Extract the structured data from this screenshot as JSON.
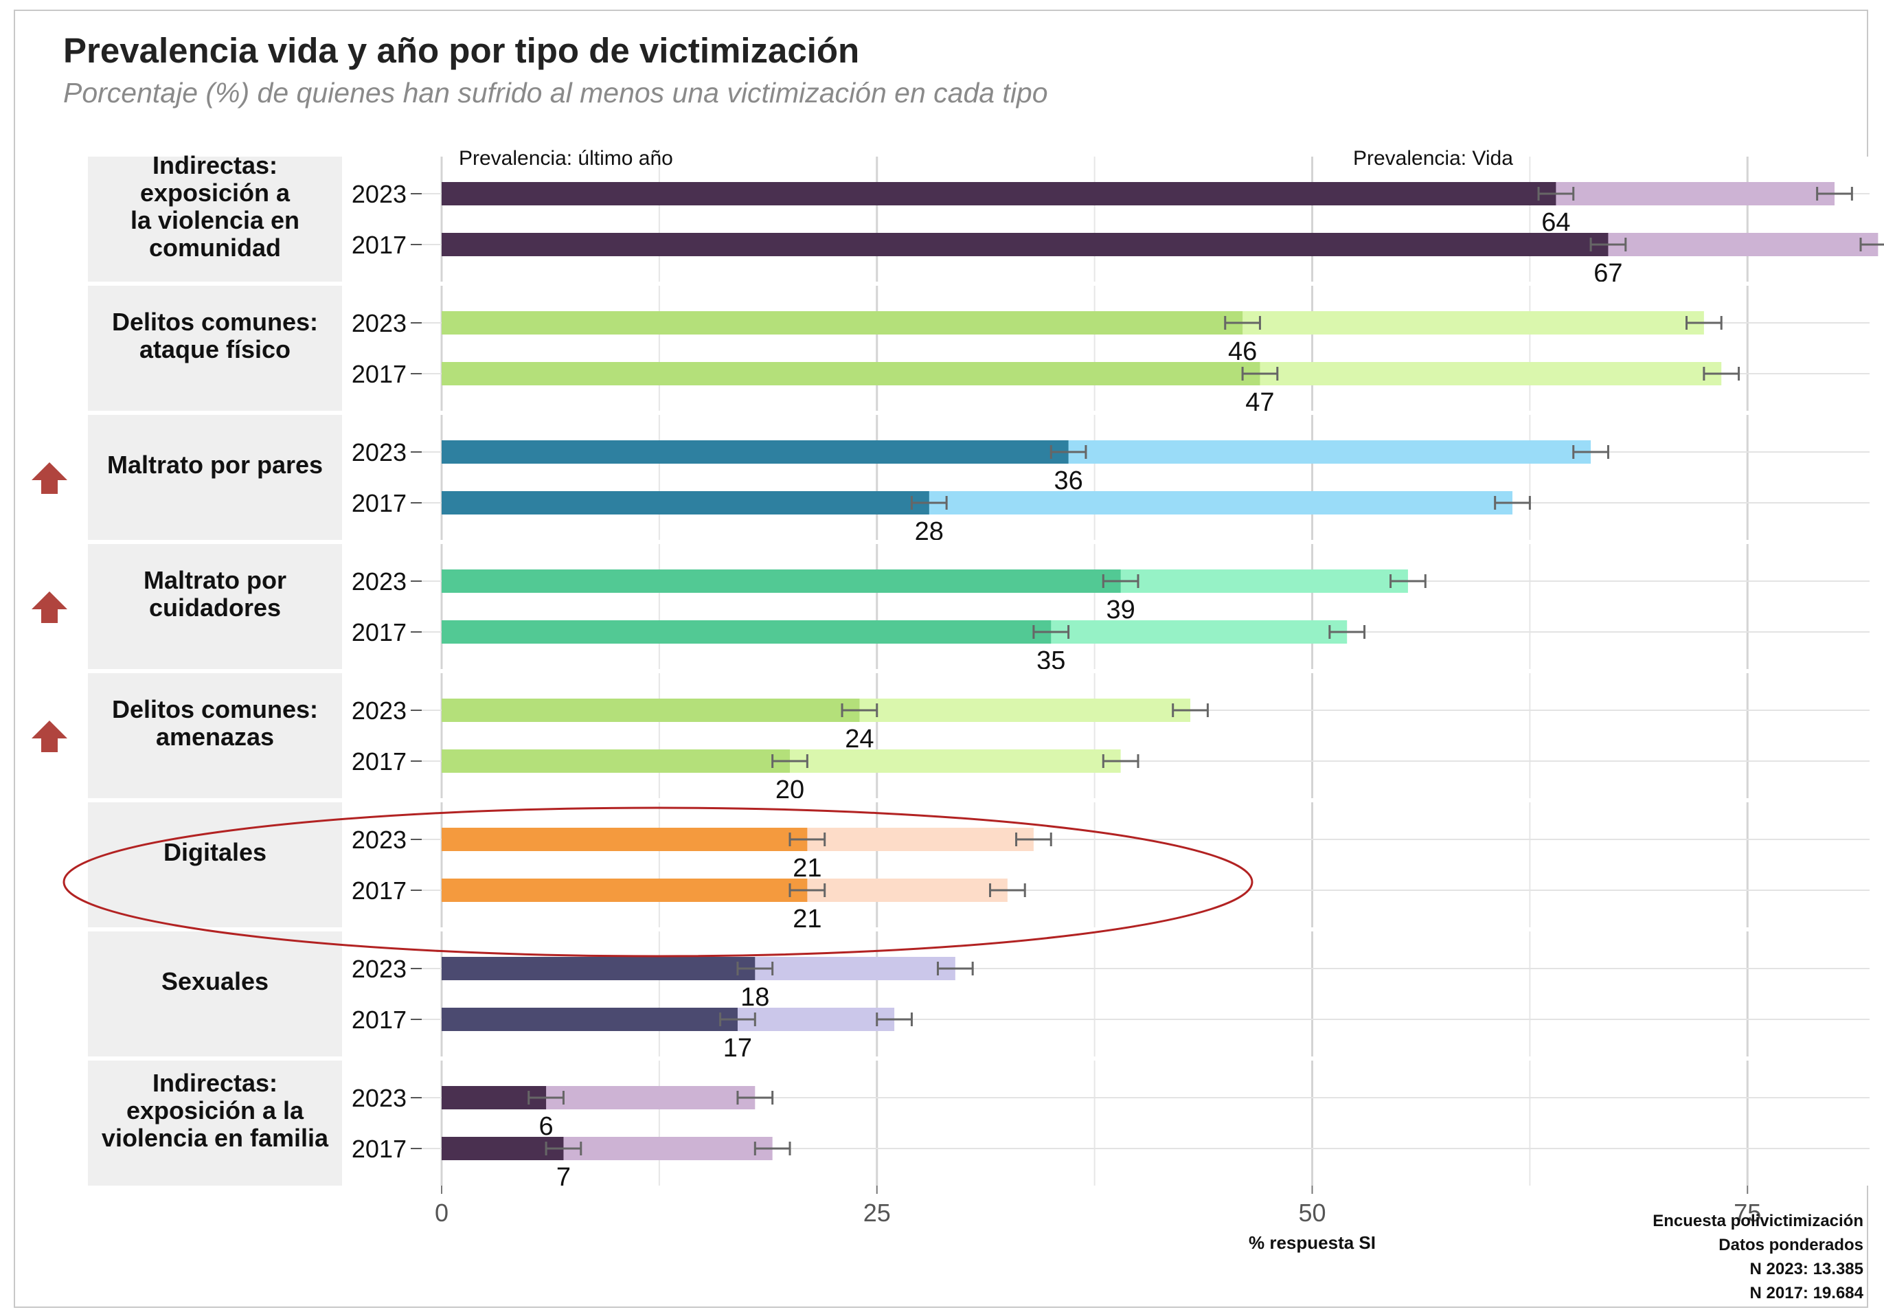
{
  "title": "Prevalencia vida y año por tipo de victimización",
  "subtitle": "Porcentaje (%) de quienes han sufrido al menos una victimización en cada tipo",
  "footnotes": [
    "Encuesta polivictimización",
    "Datos ponderados",
    "N 2023: 13.385",
    "N 2017: 19.684"
  ],
  "chart_data": {
    "type": "bar",
    "orientation": "horizontal",
    "title": "Prevalencia vida y año por tipo de victimización",
    "subtitle": "Porcentaje (%) de quienes han sufrido al menos una victimización en cada tipo",
    "xlabel": "% respuesta SI",
    "xlim": [
      0,
      100
    ],
    "xticks": [
      0,
      25,
      50,
      75,
      100
    ],
    "grid": true,
    "annotations": [
      "Prevalencia: último año",
      "Prevalencia: Vida"
    ],
    "series_names": [
      "Prevalencia: último año",
      "Prevalencia: Vida"
    ],
    "groups": [
      {
        "label": "Indirectas:\nexposición a\nla violencia en\ncomunidad",
        "arrow": false,
        "colors": {
          "year": "#4a3050",
          "life": "#cdb3d4"
        },
        "rows": [
          {
            "year": "2023",
            "last_year": 64,
            "lifetime": 80
          },
          {
            "year": "2017",
            "last_year": 67,
            "lifetime": 82.5
          }
        ]
      },
      {
        "label": "Delitos comunes:\nataque físico",
        "arrow": false,
        "colors": {
          "year": "#b4e07a",
          "life": "#daf7ad"
        },
        "rows": [
          {
            "year": "2023",
            "last_year": 46,
            "lifetime": 72.5
          },
          {
            "year": "2017",
            "last_year": 47,
            "lifetime": 73.5
          }
        ]
      },
      {
        "label": "Maltrato por pares",
        "arrow": true,
        "colors": {
          "year": "#2e80a0",
          "life": "#9adcf8"
        },
        "rows": [
          {
            "year": "2023",
            "last_year": 36,
            "lifetime": 66
          },
          {
            "year": "2017",
            "last_year": 28,
            "lifetime": 61.5
          }
        ]
      },
      {
        "label": "Maltrato por\ncuidadores",
        "arrow": true,
        "colors": {
          "year": "#52c994",
          "life": "#96f2c6"
        },
        "rows": [
          {
            "year": "2023",
            "last_year": 39,
            "lifetime": 55.5
          },
          {
            "year": "2017",
            "last_year": 35,
            "lifetime": 52
          }
        ]
      },
      {
        "label": "Delitos comunes:\namenazas",
        "arrow": true,
        "colors": {
          "year": "#b4e07a",
          "life": "#daf7ad"
        },
        "rows": [
          {
            "year": "2023",
            "last_year": 24,
            "lifetime": 43
          },
          {
            "year": "2017",
            "last_year": 20,
            "lifetime": 39
          }
        ]
      },
      {
        "label": "Digitales",
        "arrow": false,
        "colors": {
          "year": "#f49a3e",
          "life": "#fddcc8"
        },
        "rows": [
          {
            "year": "2023",
            "last_year": 21,
            "lifetime": 34
          },
          {
            "year": "2017",
            "last_year": 21,
            "lifetime": 32.5
          }
        ]
      },
      {
        "label": "Sexuales",
        "arrow": false,
        "colors": {
          "year": "#4b4a70",
          "life": "#cbc7ea"
        },
        "rows": [
          {
            "year": "2023",
            "last_year": 18,
            "lifetime": 29.5
          },
          {
            "year": "2017",
            "last_year": 17,
            "lifetime": 26
          }
        ]
      },
      {
        "label": "Indirectas:\nexposición a la\nviolencia en familia",
        "arrow": false,
        "colors": {
          "year": "#4a3050",
          "life": "#cdb3d4"
        },
        "rows": [
          {
            "year": "2023",
            "last_year": 6,
            "lifetime": 18
          },
          {
            "year": "2017",
            "last_year": 7,
            "lifetime": 19
          }
        ]
      }
    ],
    "highlight": {
      "group": "Digitales",
      "shape": "ellipse",
      "color": "#b22222"
    },
    "arrow_color": "#b0443e"
  }
}
